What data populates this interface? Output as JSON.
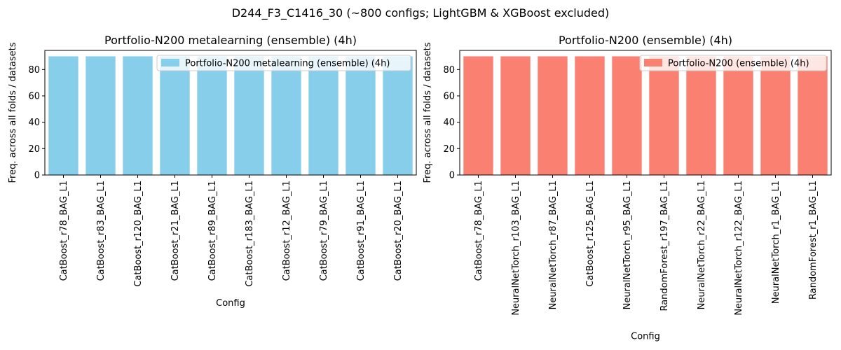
{
  "figure": {
    "suptitle": "D244_F3_C1416_30 (~800 configs; LightGBM & XGBoost excluded)"
  },
  "chart_data": [
    {
      "type": "bar",
      "title": "Portfolio-N200 metalearning (ensemble) (4h)",
      "xlabel": "Config",
      "ylabel": "Freq. across all folds / datasets",
      "ylim": [
        0,
        94.5
      ],
      "yticks": [
        0,
        20,
        40,
        60,
        80
      ],
      "grid": false,
      "legend_position": "upper right",
      "color": "#87CEEB",
      "categories": [
        "CatBoost_r78_BAG_L1",
        "CatBoost_r83_BAG_L1",
        "CatBoost_r120_BAG_L1",
        "CatBoost_r21_BAG_L1",
        "CatBoost_r89_BAG_L1",
        "CatBoost_r183_BAG_L1",
        "CatBoost_r12_BAG_L1",
        "CatBoost_r79_BAG_L1",
        "CatBoost_r91_BAG_L1",
        "CatBoost_r20_BAG_L1"
      ],
      "series": [
        {
          "name": "Portfolio-N200 metalearning (ensemble) (4h)",
          "values": [
            90,
            90,
            90,
            90,
            90,
            90,
            90,
            90,
            90,
            90
          ]
        }
      ]
    },
    {
      "type": "bar",
      "title": "Portfolio-N200 (ensemble) (4h)",
      "xlabel": "Config",
      "ylabel": "Freq. across all folds / datasets",
      "ylim": [
        0,
        94.5
      ],
      "yticks": [
        0,
        20,
        40,
        60,
        80
      ],
      "grid": false,
      "legend_position": "upper right",
      "color": "#FA8072",
      "categories": [
        "CatBoost_r78_BAG_L1",
        "NeuralNetTorch_r103_BAG_L1",
        "NeuralNetTorch_r87_BAG_L1",
        "CatBoost_r125_BAG_L1",
        "NeuralNetTorch_r95_BAG_L1",
        "RandomForest_r197_BAG_L1",
        "NeuralNetTorch_r22_BAG_L1",
        "NeuralNetTorch_r122_BAG_L1",
        "NeuralNetTorch_r1_BAG_L1",
        "RandomForest_r1_BAG_L1"
      ],
      "series": [
        {
          "name": "Portfolio-N200 (ensemble) (4h)",
          "values": [
            90,
            90,
            90,
            90,
            90,
            90,
            90,
            90,
            90,
            90
          ]
        }
      ]
    }
  ]
}
